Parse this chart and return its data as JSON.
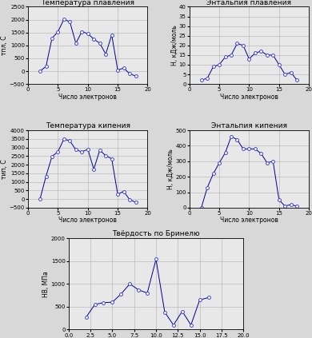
{
  "electrons": [
    2,
    3,
    4,
    5,
    6,
    7,
    8,
    9,
    10,
    11,
    12,
    13,
    14,
    15,
    16,
    17,
    18
  ],
  "melting_temp": [
    0,
    180,
    1278,
    1530,
    2017,
    1910,
    1083,
    1535,
    1455,
    1244,
    1083,
    660,
    1410,
    44,
    119,
    -101,
    -189
  ],
  "melting_enthalpy": [
    2,
    3,
    9,
    10,
    14,
    15,
    21,
    20,
    13,
    16,
    17,
    15,
    15,
    10,
    5,
    6,
    2
  ],
  "boiling_temp": [
    0,
    1330,
    2480,
    2760,
    3500,
    3380,
    2870,
    2750,
    2900,
    1740,
    2850,
    2519,
    2350,
    280,
    445,
    -35,
    -186
  ],
  "boiling_enthalpy": [
    0,
    130,
    220,
    289,
    355,
    460,
    440,
    380,
    380,
    380,
    350,
    290,
    300,
    50,
    10,
    20,
    9
  ],
  "hardness_electrons": [
    2,
    3,
    4,
    5,
    6,
    7,
    8,
    9,
    10,
    11,
    12,
    13,
    14,
    15,
    16
  ],
  "hardness": [
    270,
    550,
    590,
    600,
    780,
    1000,
    870,
    800,
    1540,
    380,
    100,
    400,
    100,
    650,
    700
  ],
  "line_color": "#00008B",
  "marker_facecolor": "#ffffff",
  "marker_edgecolor": "#4444cc",
  "grid_color": "#bbbbbb",
  "fig_facecolor": "#d8d8d8",
  "ax_facecolor": "#e8e8e8",
  "title_fontsize": 6.5,
  "label_fontsize": 5.5,
  "tick_fontsize": 5.0
}
